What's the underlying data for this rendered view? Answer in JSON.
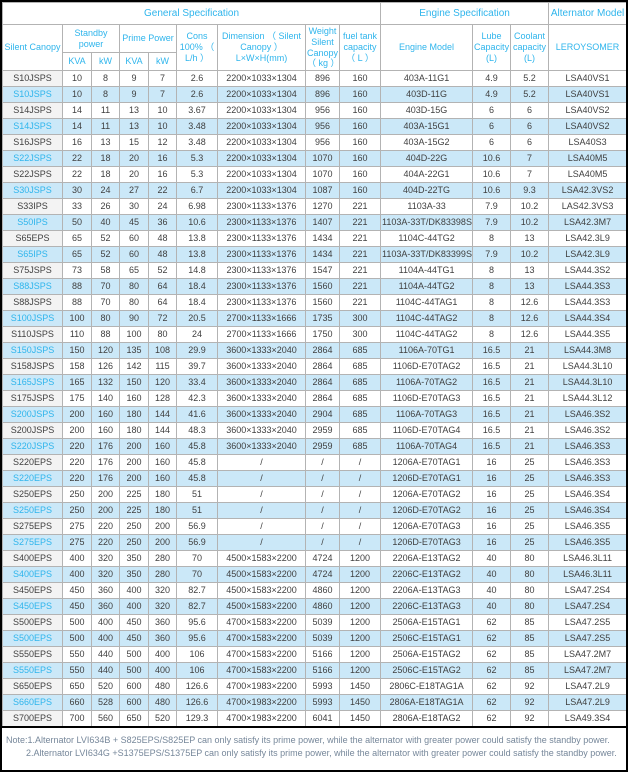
{
  "table": {
    "groups": {
      "general": "General Specification",
      "engine": "Engine Specification",
      "alternator": "Alternator Model"
    },
    "headers": {
      "silent_canopy": "Silent Canopy",
      "standby_power": "Standby power",
      "prime_power": "Prime Power",
      "kva_standby": "KVA",
      "kw_standby": "kW",
      "kva_prime": "KVA",
      "kw_prime": "kW",
      "cons": "Cons 100% （ L/h ）",
      "dimension": "Dimension （ Silent Canopy ） L×W×H(mm)",
      "weight": "Weight Silent Canopy （ kg ）",
      "fuel_tank": "fuel tank capacity （ L ）",
      "engine_model": "Engine Model",
      "lube_capacity": "Lube Capacity (L)",
      "coolant_capacity": "Coolant capacity (L)",
      "leroysomer": "LEROYSOMER"
    },
    "rows": [
      [
        "S10JSPS",
        "10",
        "8",
        "9",
        "7",
        "2.6",
        "2200×1033×1304",
        "896",
        "160",
        "403A-11G1",
        "4.9",
        "5.2",
        "LSA40VS1"
      ],
      [
        "S10JSPS",
        "10",
        "8",
        "9",
        "7",
        "2.6",
        "2200×1033×1304",
        "896",
        "160",
        "403D-11G",
        "4.9",
        "5.2",
        "LSA40VS1"
      ],
      [
        "S14JSPS",
        "14",
        "11",
        "13",
        "10",
        "3.67",
        "2200×1033×1304",
        "956",
        "160",
        "403D-15G",
        "6",
        "6",
        "LSA40VS2"
      ],
      [
        "S14JSPS",
        "14",
        "11",
        "13",
        "10",
        "3.48",
        "2200×1033×1304",
        "956",
        "160",
        "403A-15G1",
        "6",
        "6",
        "LSA40VS2"
      ],
      [
        "S16JSPS",
        "16",
        "13",
        "15",
        "12",
        "3.48",
        "2200×1033×1304",
        "956",
        "160",
        "403A-15G2",
        "6",
        "6",
        "LSA40S3"
      ],
      [
        "S22JSPS",
        "22",
        "18",
        "20",
        "16",
        "5.3",
        "2200×1033×1304",
        "1070",
        "160",
        "404D-22G",
        "10.6",
        "7",
        "LSA40M5"
      ],
      [
        "S22JSPS",
        "22",
        "18",
        "20",
        "16",
        "5.3",
        "2200×1033×1304",
        "1070",
        "160",
        "404A-22G1",
        "10.6",
        "7",
        "LSA40M5"
      ],
      [
        "S30JSPS",
        "30",
        "24",
        "27",
        "22",
        "6.7",
        "2200×1033×1304",
        "1087",
        "160",
        "404D-22TG",
        "10.6",
        "9.3",
        "LSA42.3VS2"
      ],
      [
        "S33IPS",
        "33",
        "26",
        "30",
        "24",
        "6.98",
        "2300×1133×1376",
        "1270",
        "221",
        "1103A-33",
        "7.9",
        "10.2",
        "LAS42.3VS3"
      ],
      [
        "S50IPS",
        "50",
        "40",
        "45",
        "36",
        "10.6",
        "2300×1133×1376",
        "1407",
        "221",
        "1103A-33T/DK83398S",
        "7.9",
        "10.2",
        "LSA42.3M7"
      ],
      [
        "S65EPS",
        "65",
        "52",
        "60",
        "48",
        "13.8",
        "2300×1133×1376",
        "1434",
        "221",
        "1104C-44TG2",
        "8",
        "13",
        "LSA42.3L9"
      ],
      [
        "S65IPS",
        "65",
        "52",
        "60",
        "48",
        "13.8",
        "2300×1133×1376",
        "1434",
        "221",
        "1103A-33T/DK83399S",
        "7.9",
        "10.2",
        "LSA42.3L9"
      ],
      [
        "S75JSPS",
        "73",
        "58",
        "65",
        "52",
        "14.8",
        "2300×1133×1376",
        "1547",
        "221",
        "1104A-44TG1",
        "8",
        "13",
        "LSA44.3S2"
      ],
      [
        "S88JSPS",
        "88",
        "70",
        "80",
        "64",
        "18.4",
        "2300×1133×1376",
        "1560",
        "221",
        "1104A-44TG2",
        "8",
        "13",
        "LSA44.3S3"
      ],
      [
        "S88JSPS",
        "88",
        "70",
        "80",
        "64",
        "18.4",
        "2300×1133×1376",
        "1560",
        "221",
        "1104C-44TAG1",
        "8",
        "12.6",
        "LSA44.3S3"
      ],
      [
        "S100JSPS",
        "100",
        "80",
        "90",
        "72",
        "20.5",
        "2700×1133×1666",
        "1735",
        "300",
        "1104C-44TAG2",
        "8",
        "12.6",
        "LSA44.3S4"
      ],
      [
        "S110JSPS",
        "110",
        "88",
        "100",
        "80",
        "24",
        "2700×1133×1666",
        "1750",
        "300",
        "1104C-44TAG2",
        "8",
        "12.6",
        "LSA44.3S5"
      ],
      [
        "S150JSPS",
        "150",
        "120",
        "135",
        "108",
        "29.9",
        "3600×1333×2040",
        "2864",
        "685",
        "1106A-70TG1",
        "16.5",
        "21",
        "LSA44.3M8"
      ],
      [
        "S158JSPS",
        "158",
        "126",
        "142",
        "115",
        "39.7",
        "3600×1333×2040",
        "2864",
        "685",
        "1106D-E70TAG2",
        "16.5",
        "21",
        "LSA44.3L10"
      ],
      [
        "S165JSPS",
        "165",
        "132",
        "150",
        "120",
        "33.4",
        "3600×1333×2040",
        "2864",
        "685",
        "1106A-70TAG2",
        "16.5",
        "21",
        "LSA44.3L10"
      ],
      [
        "S175JSPS",
        "175",
        "140",
        "160",
        "128",
        "42.3",
        "3600×1333×2040",
        "2864",
        "685",
        "1106D-E70TAG3",
        "16.5",
        "21",
        "LSA44.3L12"
      ],
      [
        "S200JSPS",
        "200",
        "160",
        "180",
        "144",
        "41.6",
        "3600×1333×2040",
        "2904",
        "685",
        "1106A-70TAG3",
        "16.5",
        "21",
        "LSA46.3S2"
      ],
      [
        "S200JSPS",
        "200",
        "160",
        "180",
        "144",
        "48.3",
        "3600×1333×2040",
        "2959",
        "685",
        "1106D-E70TAG4",
        "16.5",
        "21",
        "LSA46.3S2"
      ],
      [
        "S220JSPS",
        "220",
        "176",
        "200",
        "160",
        "45.8",
        "3600×1333×2040",
        "2959",
        "685",
        "1106A-70TAG4",
        "16.5",
        "21",
        "LSA46.3S3"
      ],
      [
        "S220EPS",
        "220",
        "176",
        "200",
        "160",
        "45.8",
        "/",
        "/",
        "/",
        "1206A-E70TAG1",
        "16",
        "25",
        "LSA46.3S3"
      ],
      [
        "S220EPS",
        "220",
        "176",
        "200",
        "160",
        "45.8",
        "/",
        "/",
        "/",
        "1206D-E70TAG1",
        "16",
        "25",
        "LSA46.3S3"
      ],
      [
        "S250EPS",
        "250",
        "200",
        "225",
        "180",
        "51",
        "/",
        "/",
        "/",
        "1206A-E70TAG2",
        "16",
        "25",
        "LSA46.3S4"
      ],
      [
        "S250EPS",
        "250",
        "200",
        "225",
        "180",
        "51",
        "/",
        "/",
        "/",
        "1206D-E70TAG2",
        "16",
        "25",
        "LSA46.3S4"
      ],
      [
        "S275EPS",
        "275",
        "220",
        "250",
        "200",
        "56.9",
        "/",
        "/",
        "/",
        "1206A-E70TAG3",
        "16",
        "25",
        "LSA46.3S5"
      ],
      [
        "S275EPS",
        "275",
        "220",
        "250",
        "200",
        "56.9",
        "/",
        "/",
        "/",
        "1206D-E70TAG3",
        "16",
        "25",
        "LSA46.3S5"
      ],
      [
        "S400EPS",
        "400",
        "320",
        "350",
        "280",
        "70",
        "4500×1583×2200",
        "4724",
        "1200",
        "2206A-E13TAG2",
        "40",
        "80",
        "LSA46.3L11"
      ],
      [
        "S400EPS",
        "400",
        "320",
        "350",
        "280",
        "70",
        "4500×1583×2200",
        "4724",
        "1200",
        "2206C-E13TAG2",
        "40",
        "80",
        "LSA46.3L11"
      ],
      [
        "S450EPS",
        "450",
        "360",
        "400",
        "320",
        "82.7",
        "4500×1583×2200",
        "4860",
        "1200",
        "2206A-E13TAG3",
        "40",
        "80",
        "LSA47.2S4"
      ],
      [
        "S450EPS",
        "450",
        "360",
        "400",
        "320",
        "82.7",
        "4500×1583×2200",
        "4860",
        "1200",
        "2206C-E13TAG3",
        "40",
        "80",
        "LSA47.2S4"
      ],
      [
        "S500EPS",
        "500",
        "400",
        "450",
        "360",
        "95.6",
        "4700×1583×2200",
        "5039",
        "1200",
        "2506A-E15TAG1",
        "62",
        "85",
        "LSA47.2S5"
      ],
      [
        "S500EPS",
        "500",
        "400",
        "450",
        "360",
        "95.6",
        "4700×1583×2200",
        "5039",
        "1200",
        "2506C-E15TAG1",
        "62",
        "85",
        "LSA47.2S5"
      ],
      [
        "S550EPS",
        "550",
        "440",
        "500",
        "400",
        "106",
        "4700×1583×2200",
        "5166",
        "1200",
        "2506A-E15TAG2",
        "62",
        "85",
        "LSA47.2M7"
      ],
      [
        "S550EPS",
        "550",
        "440",
        "500",
        "400",
        "106",
        "4700×1583×2200",
        "5166",
        "1200",
        "2506C-E15TAG2",
        "62",
        "85",
        "LSA47.2M7"
      ],
      [
        "S650EPS",
        "650",
        "520",
        "600",
        "480",
        "126.6",
        "4700×1983×2200",
        "5993",
        "1450",
        "2806C-E18TAG1A",
        "62",
        "92",
        "LSA47.2L9"
      ],
      [
        "S660EPS",
        "660",
        "528",
        "600",
        "480",
        "126.6",
        "4700×1983×2200",
        "5993",
        "1450",
        "2806A-E18TAG1A",
        "62",
        "92",
        "LSA47.2L9"
      ],
      [
        "S700EPS",
        "700",
        "560",
        "650",
        "520",
        "129.3",
        "4700×1983×2200",
        "6041",
        "1450",
        "2806A-E18TAG2",
        "62",
        "92",
        "LSA49.3S4"
      ]
    ]
  },
  "notes": {
    "line1": "Note:1.Alternator LVI634B + S825EPS/S825EP can only satisfy its prime power, while the alternator with greater power could satisfy the standby power.",
    "line2": "2.Alternator LVI634G +S1375EPS/S1375EP can only satisfy its prime power, while the alternator with greater power could satisfy the standby power."
  },
  "colors": {
    "header_text": "#2fb5ec",
    "stripe_blue": "#cbe8f8",
    "model_col_grey": "#f3f3f3",
    "data_text": "#3f3f3f",
    "note_text": "#76879a",
    "grid_line": "#b3b3b3",
    "outer_border": "#000000"
  }
}
